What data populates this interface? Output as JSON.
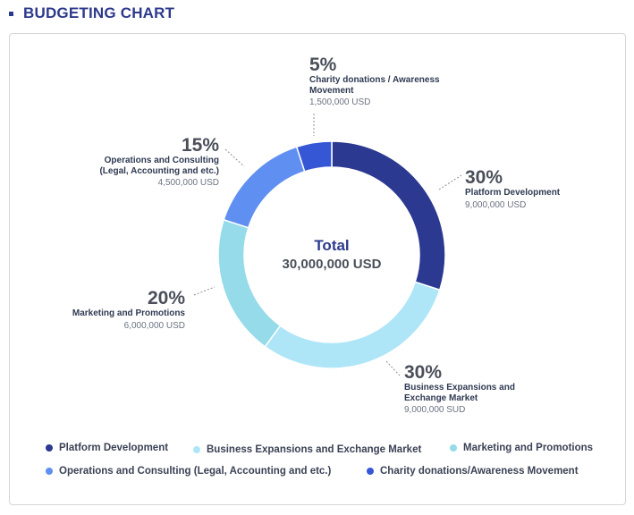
{
  "header": {
    "title": "BUDGETING CHART"
  },
  "center": {
    "label": "Total",
    "value": "30,000,000 USD"
  },
  "chart_data": {
    "type": "pie",
    "title": "BUDGETING CHART",
    "center_label": "Total 30,000,000 USD",
    "legend_position": "bottom",
    "slices": [
      {
        "name": "Platform Development",
        "percent_label": "30%",
        "value": 30,
        "amount": "9,000,000 USD",
        "color": "#2b3991",
        "label_lines": [
          "Platform Development"
        ]
      },
      {
        "name": "Business Expansions and Exchange Market",
        "percent_label": "30%",
        "value": 30,
        "amount": "9,000,000 SUD",
        "color": "#aee6f8",
        "label_lines": [
          "Business Expansions and",
          "Exchange Market"
        ]
      },
      {
        "name": "Marketing and Promotions",
        "percent_label": "20%",
        "value": 20,
        "amount": "6,000,000 USD",
        "color": "#95dbe9",
        "label_lines": [
          "Marketing and Promotions"
        ]
      },
      {
        "name": "Operations and Consulting (Legal, Accounting and etc.)",
        "percent_label": "15%",
        "value": 15,
        "amount": "4,500,000 USD",
        "color": "#5f8ff0",
        "label_lines": [
          "Operations and Consulting",
          "(Legal, Accounting and etc.)"
        ]
      },
      {
        "name": "Charity donations / Awareness Movement",
        "percent_label": "5%",
        "value": 5,
        "amount": "1,500,000 USD",
        "color": "#3557d6",
        "label_lines": [
          "Charity donations / Awareness",
          "Movement"
        ]
      }
    ]
  },
  "legend": [
    {
      "label": "Platform Development",
      "color": "#2b3991"
    },
    {
      "label": "Business Expansions and Exchange Market",
      "color": "#aee6f8"
    },
    {
      "label": "Marketing and Promotions",
      "color": "#95dbe9"
    },
    {
      "label": "Operations and Consulting (Legal, Accounting and etc.)",
      "color": "#5f8ff0"
    },
    {
      "label": "Charity donations/Awareness Movement",
      "color": "#3557d6"
    }
  ]
}
